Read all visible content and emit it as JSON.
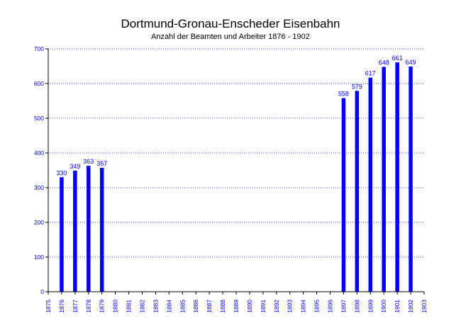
{
  "chart_data": {
    "type": "bar",
    "title": "Dortmund-Gronau-Enscheder Eisenbahn",
    "subtitle": "Anzahl der Beamten und Arbeiter 1876 - 1902",
    "xlabel": "",
    "ylabel": "",
    "ylim": [
      0,
      700
    ],
    "y_ticks": [
      "0",
      "100",
      "200",
      "300",
      "400",
      "500",
      "600",
      "700"
    ],
    "x_ticks": [
      "1875",
      "1876",
      "1877",
      "1878",
      "1879",
      "1880",
      "1881",
      "1882",
      "1883",
      "1884",
      "1885",
      "1886",
      "1887",
      "1888",
      "1889",
      "1890",
      "1891",
      "1892",
      "1893",
      "1894",
      "1895",
      "1896",
      "1897",
      "1898",
      "1899",
      "1900",
      "1901",
      "1902",
      "1903"
    ],
    "x": [
      1876,
      1877,
      1878,
      1879,
      1897,
      1898,
      1899,
      1900,
      1901,
      1902
    ],
    "values": [
      330,
      349,
      363,
      357,
      558,
      579,
      617,
      648,
      661,
      649
    ],
    "grid": "horizontal dotted",
    "colors": {
      "bar": "#0000ff",
      "axis_text": "#0000ff",
      "grid": "#0000cc",
      "title": "#000000"
    }
  }
}
